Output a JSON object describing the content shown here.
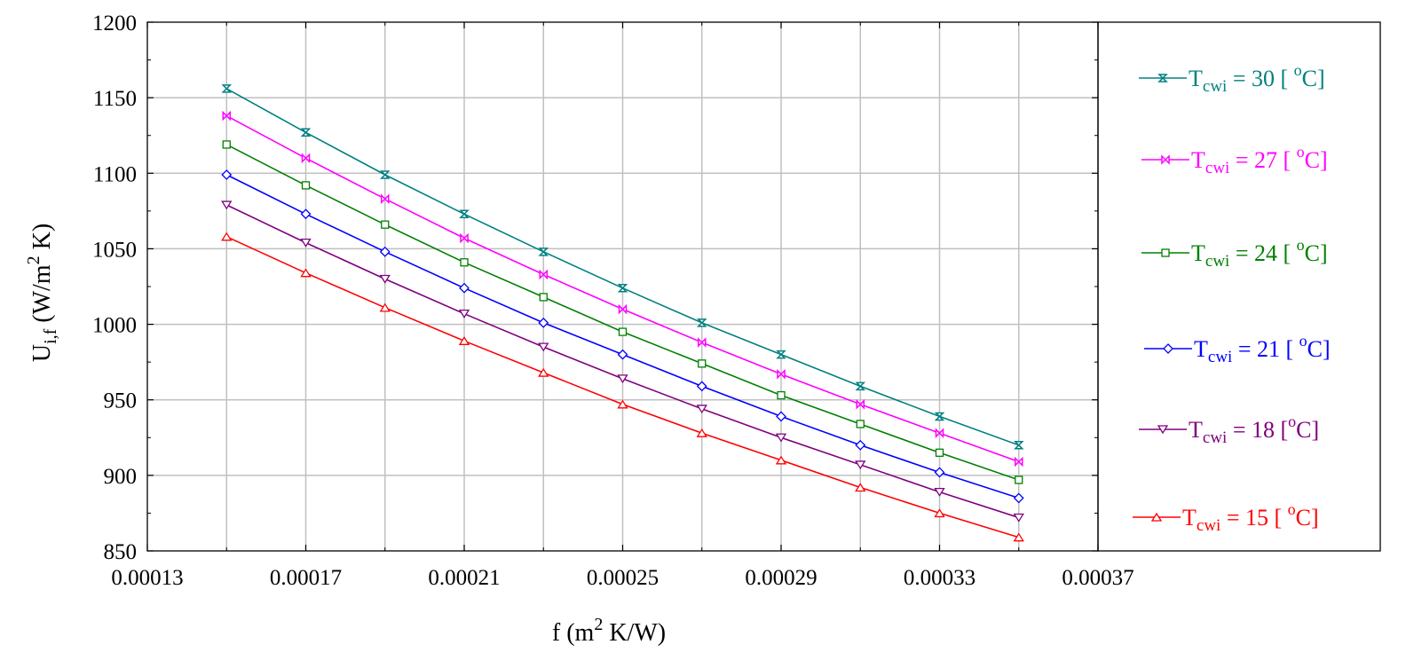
{
  "chart_data": {
    "type": "line",
    "xlabel": {
      "prefix": "f (m",
      "sup": "2",
      "suffix": " K/W)"
    },
    "ylabel": {
      "base": "U",
      "sub": "i,f",
      "unit_prefix": " (W/m",
      "unit_sup": "2",
      "unit_suffix": " K)"
    },
    "xlim": [
      0.00013,
      0.00037
    ],
    "ylim": [
      850,
      1200
    ],
    "x_ticks": [
      0.00013,
      0.00017,
      0.00021,
      0.00025,
      0.00029,
      0.00033,
      0.00037
    ],
    "x_tick_labels": [
      "0.00013",
      "0.00017",
      "0.00021",
      "0.00025",
      "0.00029",
      "0.00033",
      "0.00037"
    ],
    "x_grid": [
      0.00015,
      0.00017,
      0.00019,
      0.00021,
      0.00023,
      0.00025,
      0.00027,
      0.00029,
      0.00031,
      0.00033,
      0.00035
    ],
    "y_ticks": [
      850,
      900,
      950,
      1000,
      1050,
      1100,
      1150,
      1200
    ],
    "y_tick_labels": [
      "850",
      "900",
      "950",
      "1000",
      "1050",
      "1100",
      "1150",
      "1200"
    ],
    "grid": true,
    "legend_position": "right",
    "x": [
      0.00015,
      0.00017,
      0.00019,
      0.00021,
      0.00023,
      0.00025,
      0.00027,
      0.00029,
      0.00031,
      0.00033,
      0.00035
    ],
    "series": [
      {
        "name": "T cwi = 30 [ oC]",
        "label": {
          "base": "T",
          "sub": "cwi",
          "mid": " = 30 [ ",
          "sup": "o",
          "end": "C]"
        },
        "color": "#008080",
        "marker": "hourglass",
        "values": [
          1156,
          1127,
          1099,
          1073,
          1048,
          1024,
          1001,
          980,
          959,
          939,
          920
        ]
      },
      {
        "name": "T cwi = 27 [ oC]",
        "label": {
          "base": "T",
          "sub": "cwi",
          "mid": " = 27 [ ",
          "sup": "o",
          "end": "C]"
        },
        "color": "#ff00ff",
        "marker": "bowtie",
        "values": [
          1138,
          1110,
          1083,
          1057,
          1033,
          1010,
          988,
          967,
          947,
          928,
          909
        ]
      },
      {
        "name": "T cwi = 24 [ oC]",
        "label": {
          "base": "T",
          "sub": "cwi",
          "mid": " = 24 [ ",
          "sup": "o",
          "end": "C]"
        },
        "color": "#008000",
        "marker": "square",
        "values": [
          1119,
          1092,
          1066,
          1041,
          1018,
          995,
          974,
          953,
          934,
          915,
          897
        ]
      },
      {
        "name": "T cwi = 21 [ oC]",
        "label": {
          "base": "T",
          "sub": "cwi",
          "mid": " = 21 [ ",
          "sup": "o",
          "end": "C]"
        },
        "color": "#0000ff",
        "marker": "diamond",
        "values": [
          1099,
          1073,
          1048,
          1024,
          1001,
          980,
          959,
          939,
          920,
          902,
          885
        ]
      },
      {
        "name": "T cwi = 18 [oC]",
        "label": {
          "base": "T",
          "sub": "cwi",
          "mid": " = 18 [",
          "sup": "o",
          "end": "C]"
        },
        "color": "#800080",
        "marker": "triangle-down",
        "values": [
          1079,
          1054,
          1030,
          1007,
          985,
          964,
          944,
          925,
          907,
          889,
          872
        ]
      },
      {
        "name": "T cwi = 15 [ oC]",
        "label": {
          "base": "T",
          "sub": "cwi",
          "mid": " = 15 [ ",
          "sup": "o",
          "end": "C]"
        },
        "color": "#ff0000",
        "marker": "triangle-up",
        "values": [
          1058,
          1034,
          1011,
          989,
          968,
          947,
          928,
          910,
          892,
          875,
          859
        ]
      }
    ]
  }
}
